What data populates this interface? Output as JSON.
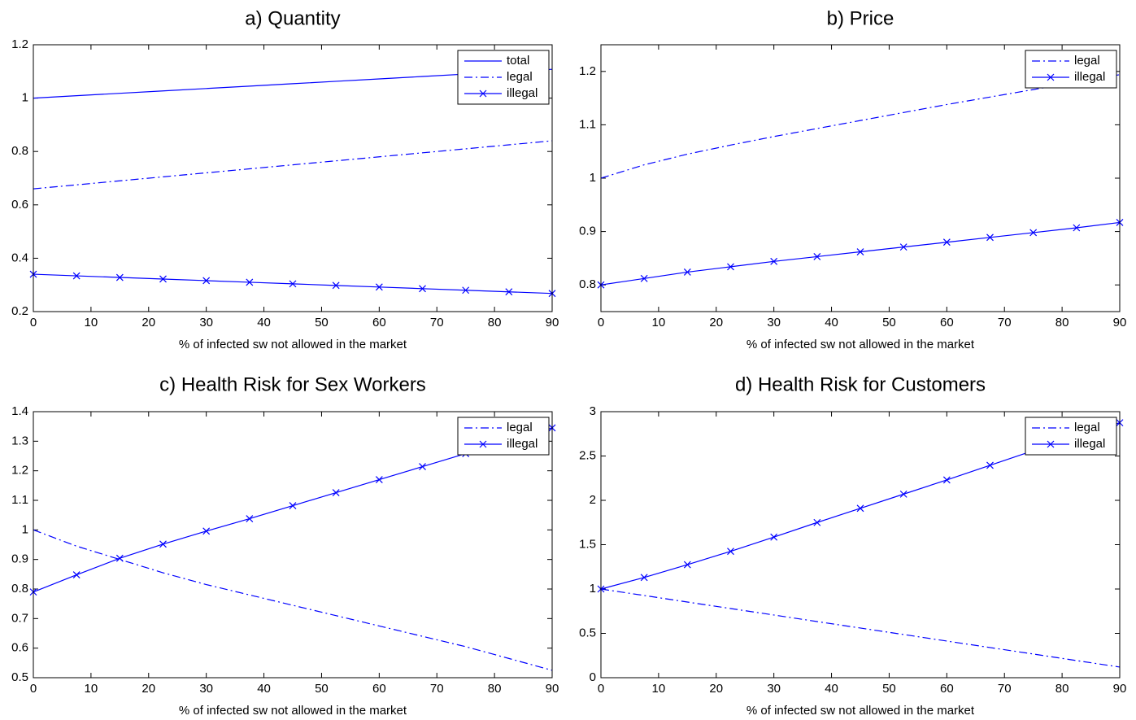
{
  "chart_data": [
    {
      "type": "line",
      "title": "a) Quantity",
      "xlabel": "% of infected sw not allowed in the market",
      "x": [
        0,
        7.5,
        15,
        22.5,
        30,
        37.5,
        45,
        52.5,
        60,
        67.5,
        75,
        82.5,
        90
      ],
      "xlim": [
        0,
        90
      ],
      "xticks": [
        0,
        10,
        20,
        30,
        40,
        50,
        60,
        70,
        80,
        90
      ],
      "ylim": [
        0.2,
        1.2
      ],
      "yticks": [
        0.2,
        0.4,
        0.6,
        0.8,
        1,
        1.2
      ],
      "legend": "upper right",
      "series": [
        {
          "name": "total",
          "color": "#0000ff",
          "linestyle": "solid",
          "values": [
            1.0,
            1.009,
            1.018,
            1.027,
            1.036,
            1.045,
            1.054,
            1.063,
            1.072,
            1.081,
            1.09,
            1.099,
            1.108
          ]
        },
        {
          "name": "legal",
          "color": "#0000ff",
          "linestyle": "dashdot",
          "values": [
            0.66,
            0.675,
            0.69,
            0.705,
            0.72,
            0.735,
            0.75,
            0.765,
            0.78,
            0.795,
            0.81,
            0.825,
            0.84
          ]
        },
        {
          "name": "illegal",
          "color": "#0000ff",
          "linestyle": "solid",
          "marker": "x",
          "values": [
            0.34,
            0.334,
            0.328,
            0.322,
            0.316,
            0.31,
            0.304,
            0.298,
            0.292,
            0.286,
            0.28,
            0.274,
            0.268
          ]
        }
      ]
    },
    {
      "type": "line",
      "title": "b) Price",
      "xlabel": "% of infected sw not allowed in the market",
      "x": [
        0,
        7.5,
        15,
        22.5,
        30,
        37.5,
        45,
        52.5,
        60,
        67.5,
        75,
        82.5,
        90
      ],
      "xlim": [
        0,
        90
      ],
      "xticks": [
        0,
        10,
        20,
        30,
        40,
        50,
        60,
        70,
        80,
        90
      ],
      "ylim": [
        0.75,
        1.25
      ],
      "yticks": [
        0.8,
        0.9,
        1,
        1.1,
        1.2
      ],
      "legend": "upper right",
      "series": [
        {
          "name": "legal",
          "color": "#0000ff",
          "linestyle": "dashdot",
          "values": [
            1.0,
            1.025,
            1.045,
            1.062,
            1.078,
            1.093,
            1.108,
            1.123,
            1.138,
            1.152,
            1.166,
            1.18,
            1.194
          ]
        },
        {
          "name": "illegal",
          "color": "#0000ff",
          "linestyle": "solid",
          "marker": "x",
          "values": [
            0.8,
            0.812,
            0.824,
            0.834,
            0.844,
            0.853,
            0.862,
            0.871,
            0.88,
            0.889,
            0.898,
            0.907,
            0.917
          ]
        }
      ]
    },
    {
      "type": "line",
      "title": "c) Health Risk for Sex Workers",
      "xlabel": "% of infected sw not allowed in the market",
      "x": [
        0,
        7.5,
        15,
        22.5,
        30,
        37.5,
        45,
        52.5,
        60,
        67.5,
        75,
        82.5,
        90
      ],
      "xlim": [
        0,
        90
      ],
      "xticks": [
        0,
        10,
        20,
        30,
        40,
        50,
        60,
        70,
        80,
        90
      ],
      "ylim": [
        0.5,
        1.4
      ],
      "yticks": [
        0.5,
        0.6,
        0.7,
        0.8,
        0.9,
        1,
        1.1,
        1.2,
        1.3,
        1.4
      ],
      "legend": "upper right",
      "series": [
        {
          "name": "legal",
          "color": "#0000ff",
          "linestyle": "dashdot",
          "values": [
            1.0,
            0.945,
            0.9,
            0.855,
            0.815,
            0.78,
            0.745,
            0.71,
            0.675,
            0.64,
            0.605,
            0.565,
            0.525
          ]
        },
        {
          "name": "illegal",
          "color": "#0000ff",
          "linestyle": "solid",
          "marker": "x",
          "values": [
            0.79,
            0.848,
            0.904,
            0.952,
            0.996,
            1.038,
            1.082,
            1.126,
            1.17,
            1.214,
            1.258,
            1.3,
            1.345
          ]
        }
      ]
    },
    {
      "type": "line",
      "title": "d) Health Risk for Customers",
      "xlabel": "% of infected sw not allowed in the market",
      "x": [
        0,
        7.5,
        15,
        22.5,
        30,
        37.5,
        45,
        52.5,
        60,
        67.5,
        75,
        82.5,
        90
      ],
      "xlim": [
        0,
        90
      ],
      "xticks": [
        0,
        10,
        20,
        30,
        40,
        50,
        60,
        70,
        80,
        90
      ],
      "ylim": [
        0,
        3
      ],
      "yticks": [
        0,
        0.5,
        1,
        1.5,
        2,
        2.5,
        3
      ],
      "legend": "upper right",
      "series": [
        {
          "name": "legal",
          "color": "#0000ff",
          "linestyle": "dashdot",
          "values": [
            1.0,
            0.927,
            0.853,
            0.78,
            0.707,
            0.633,
            0.56,
            0.487,
            0.413,
            0.34,
            0.267,
            0.193,
            0.12
          ]
        },
        {
          "name": "illegal",
          "color": "#0000ff",
          "linestyle": "solid",
          "marker": "x",
          "values": [
            1.0,
            1.13,
            1.275,
            1.425,
            1.585,
            1.75,
            1.91,
            2.07,
            2.23,
            2.395,
            2.56,
            2.72,
            2.875
          ]
        }
      ]
    }
  ]
}
